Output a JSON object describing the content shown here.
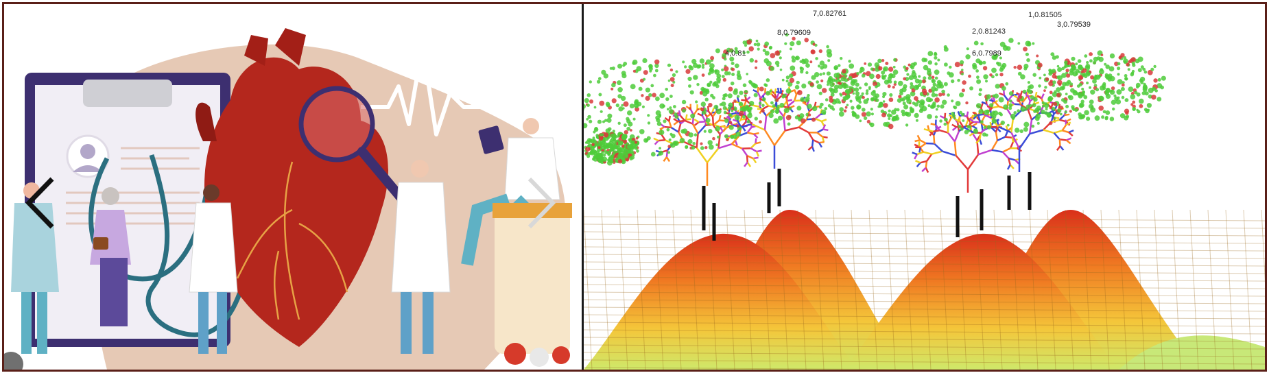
{
  "left_panel": {
    "prev_icon": "chevron-left-icon",
    "next_icon": "chevron-right-icon",
    "colors": {
      "blob": "#e6c9b5",
      "heart": "#b4271d",
      "clipboard": "#3d2f70",
      "ecg": "#ffffff"
    }
  },
  "right_panel": {
    "labels": [
      {
        "id": "l7",
        "text": "7,0.82761"
      },
      {
        "id": "l1",
        "text": "1,0.81505"
      },
      {
        "id": "l3",
        "text": "3,0.79539"
      },
      {
        "id": "l2",
        "text": "2,0.81243"
      },
      {
        "id": "l6",
        "text": "6,0.7989"
      },
      {
        "id": "l4",
        "text": "4,0.81"
      },
      {
        "id": "l8",
        "text": "8,0.79609"
      }
    ]
  }
}
